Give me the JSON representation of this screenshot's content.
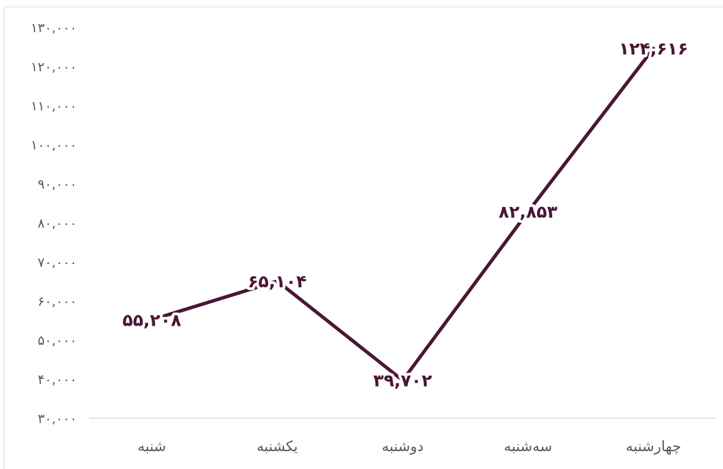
{
  "chart_data": {
    "type": "line",
    "title": "",
    "xlabel": "",
    "ylabel": "",
    "categories": [
      "شنبه",
      "یکشنبه",
      "دوشنبه",
      "سه‌شنبه",
      "چهارشنبه"
    ],
    "series": [
      {
        "values": [
          55208,
          65104,
          39702,
          82853,
          124616
        ],
        "labels": [
          "۵۵,۲۰۸",
          "۶۵,۱۰۴",
          "۳۹,۷۰۲",
          "۸۲,۸۵۳",
          "۱۲۴,۶۱۶"
        ],
        "color": "#4a1535"
      }
    ],
    "ylim": [
      30000,
      130000
    ],
    "yticks": [
      30000,
      40000,
      50000,
      60000,
      70000,
      80000,
      90000,
      100000,
      110000,
      120000,
      130000
    ],
    "ytick_labels": [
      "۳۰,۰۰۰",
      "۴۰,۰۰۰",
      "۵۰,۰۰۰",
      "۶۰,۰۰۰",
      "۷۰,۰۰۰",
      "۸۰,۰۰۰",
      "۹۰,۰۰۰",
      "۱۰۰,۰۰۰",
      "۱۱۰,۰۰۰",
      "۱۲۰,۰۰۰",
      "۱۳۰,۰۰۰"
    ],
    "grid": false,
    "legend": "none"
  },
  "colors": {
    "axis": "#d9d9d9",
    "tick_text": "#595959",
    "series": "#4a1535"
  }
}
